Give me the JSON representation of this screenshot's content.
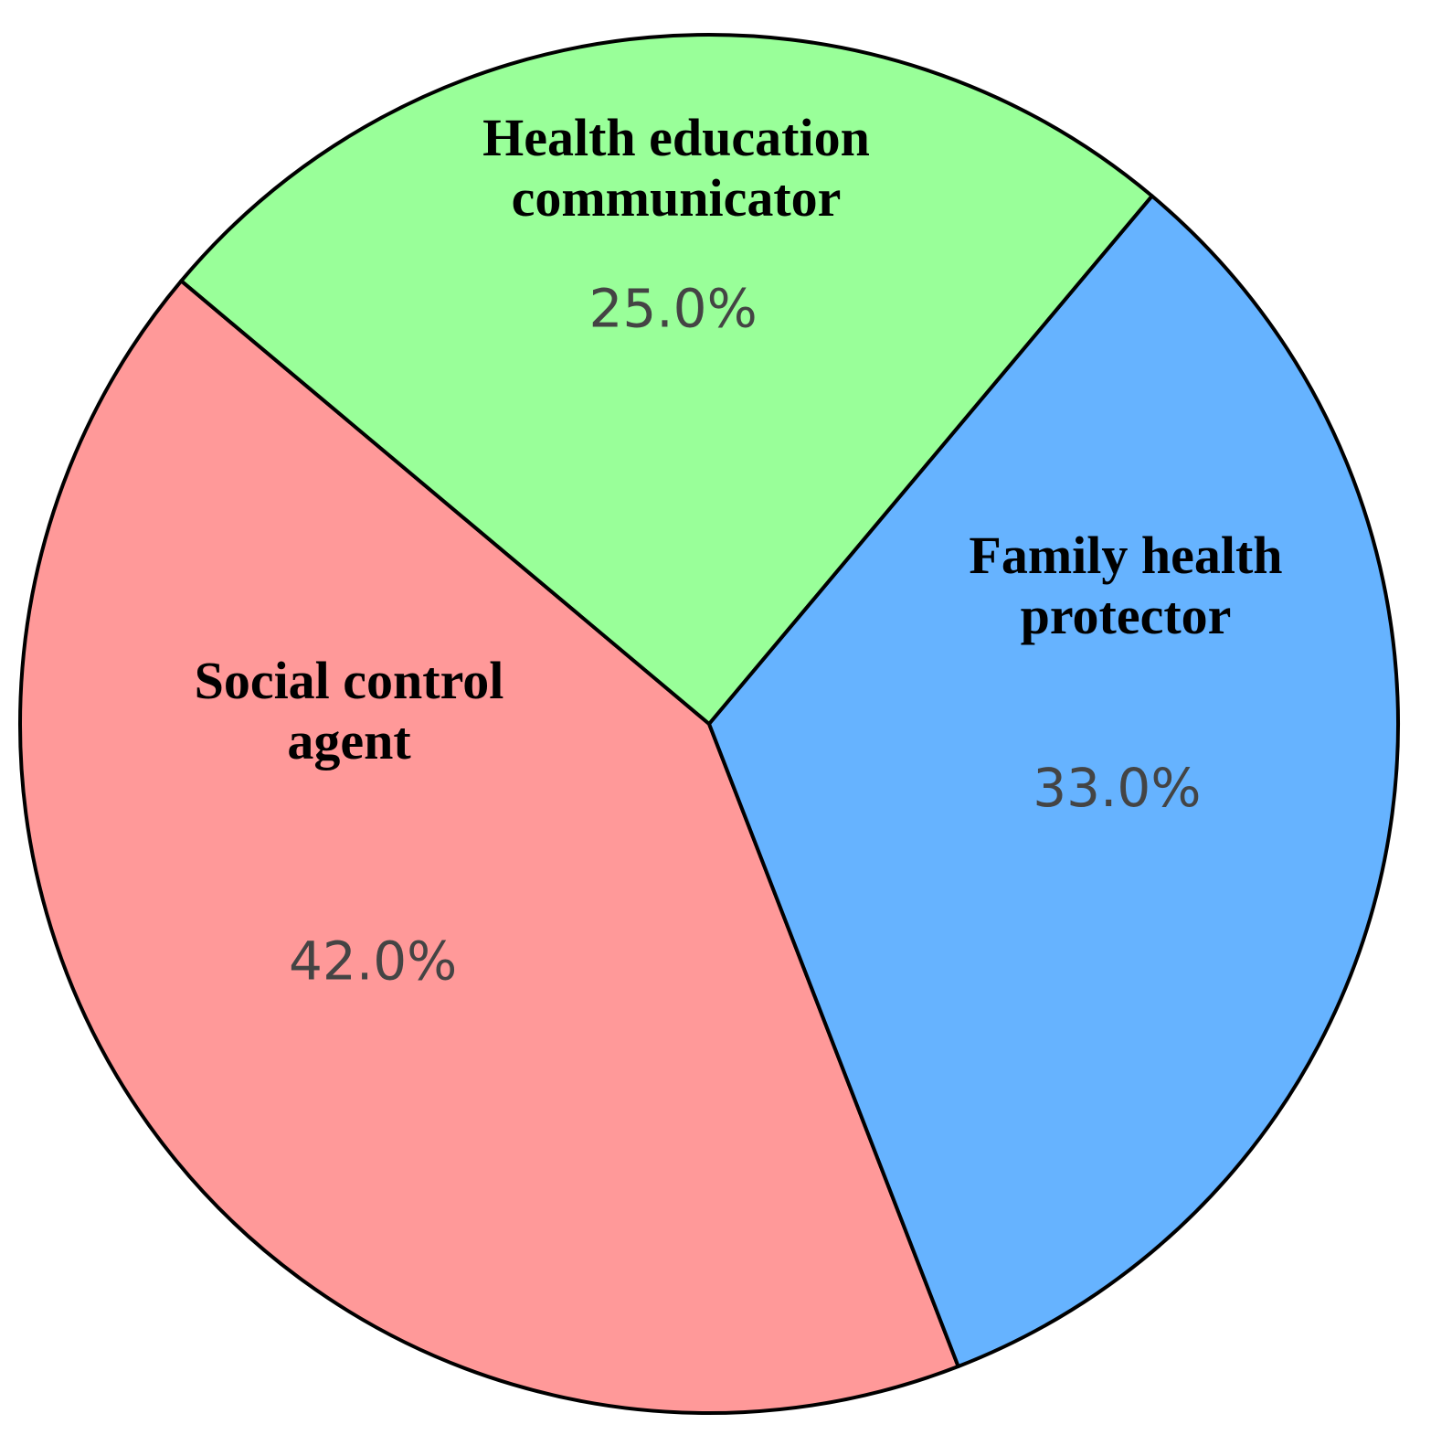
{
  "chart_data": {
    "type": "pie",
    "categories": [
      "Social control agent",
      "Family health protector",
      "Health education communicator"
    ],
    "values": [
      42,
      33,
      25
    ],
    "value_labels": [
      "42.0%",
      "33.0%",
      "25.0%"
    ],
    "colors": [
      "#ff9999",
      "#66b3ff",
      "#99ff99"
    ],
    "startangle": 140,
    "counterclock": true
  }
}
